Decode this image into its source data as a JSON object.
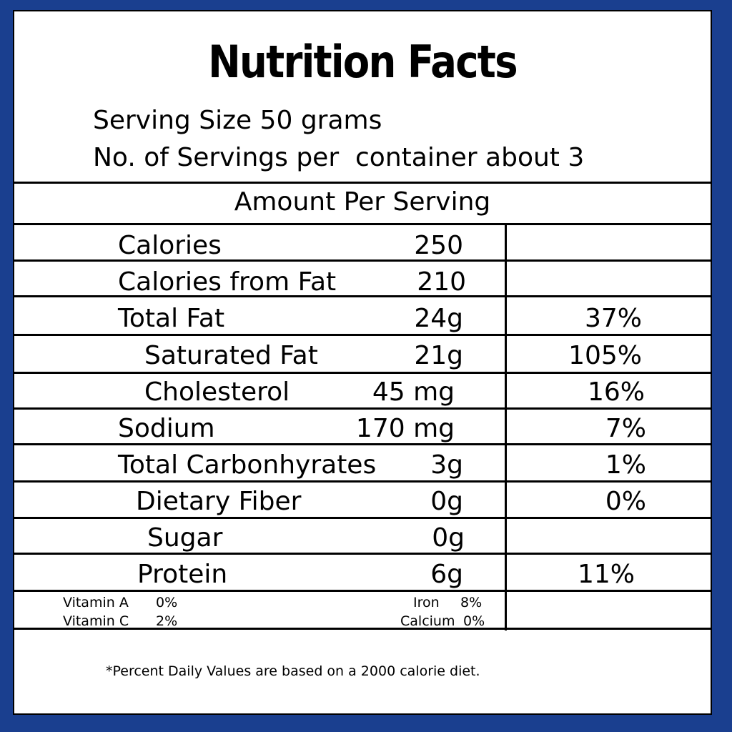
{
  "label": {
    "title": "Nutrition Facts",
    "serving_size": "Serving Size 50 grams",
    "servings_per_container": "No. of Servings per  container about 3",
    "amount_per_serving": "Amount Per Serving",
    "rows": [
      {
        "name": "Calories",
        "amount": "250",
        "dv": ""
      },
      {
        "name": "Calories from Fat",
        "amount": "210",
        "dv": ""
      },
      {
        "name": "Total Fat",
        "amount": "24g",
        "dv": "37%"
      },
      {
        "name": "Saturated Fat",
        "amount": "21g",
        "dv": "105%"
      },
      {
        "name": "Cholesterol",
        "amount": "45 mg",
        "dv": "16%"
      },
      {
        "name": "Sodium",
        "amount": "170 mg",
        "dv": "7%"
      },
      {
        "name": "Total Carbonhyrates",
        "amount": "3g",
        "dv": "1%"
      },
      {
        "name": "Dietary Fiber",
        "amount": "0g",
        "dv": "0%"
      },
      {
        "name": "Sugar",
        "amount": "0g",
        "dv": ""
      },
      {
        "name": "Protein",
        "amount": "6g",
        "dv": "11%"
      }
    ],
    "vitamins": {
      "vitamin_a_label": "Vitamin A",
      "vitamin_a_value": "0%",
      "vitamin_c_label": "Vitamin C",
      "vitamin_c_value": "2%",
      "iron_label": "Iron",
      "iron_value": "8%",
      "calcium_label": "Calcium",
      "calcium_value": "0%"
    },
    "footnote": "*Percent Daily Values are based on a 2000 calorie diet."
  },
  "colors": {
    "border_blue": "#1a3f8f",
    "background": "#ffffff",
    "text": "#000000"
  }
}
